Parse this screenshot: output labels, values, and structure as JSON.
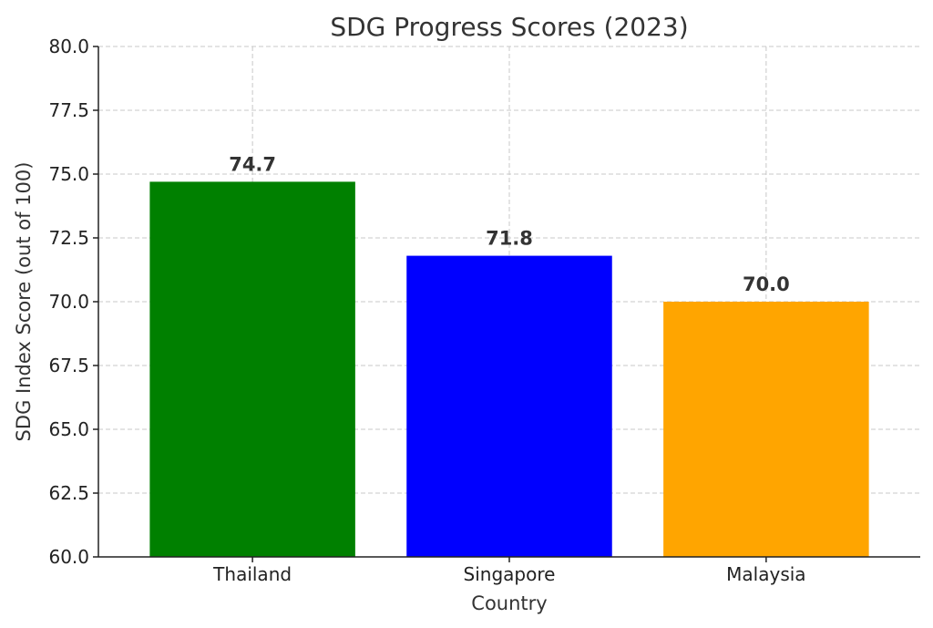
{
  "chart_data": {
    "type": "bar",
    "title": "SDG Progress Scores (2023)",
    "xlabel": "Country",
    "ylabel": "SDG Index Score (out of 100)",
    "categories": [
      "Thailand",
      "Singapore",
      "Malaysia"
    ],
    "values": [
      74.7,
      71.8,
      70.0
    ],
    "value_labels": [
      "74.7",
      "71.8",
      "70.0"
    ],
    "colors": [
      "#008000",
      "#0000ff",
      "#ffa500"
    ],
    "ylim": [
      60,
      80
    ],
    "yticks": [
      60,
      62.5,
      65,
      67.5,
      70,
      72.5,
      75,
      77.5,
      80
    ],
    "ytick_labels": [
      "60.0",
      "62.5",
      "65.0",
      "67.5",
      "70.0",
      "72.5",
      "75.0",
      "77.5",
      "80.0"
    ],
    "grid": true
  }
}
